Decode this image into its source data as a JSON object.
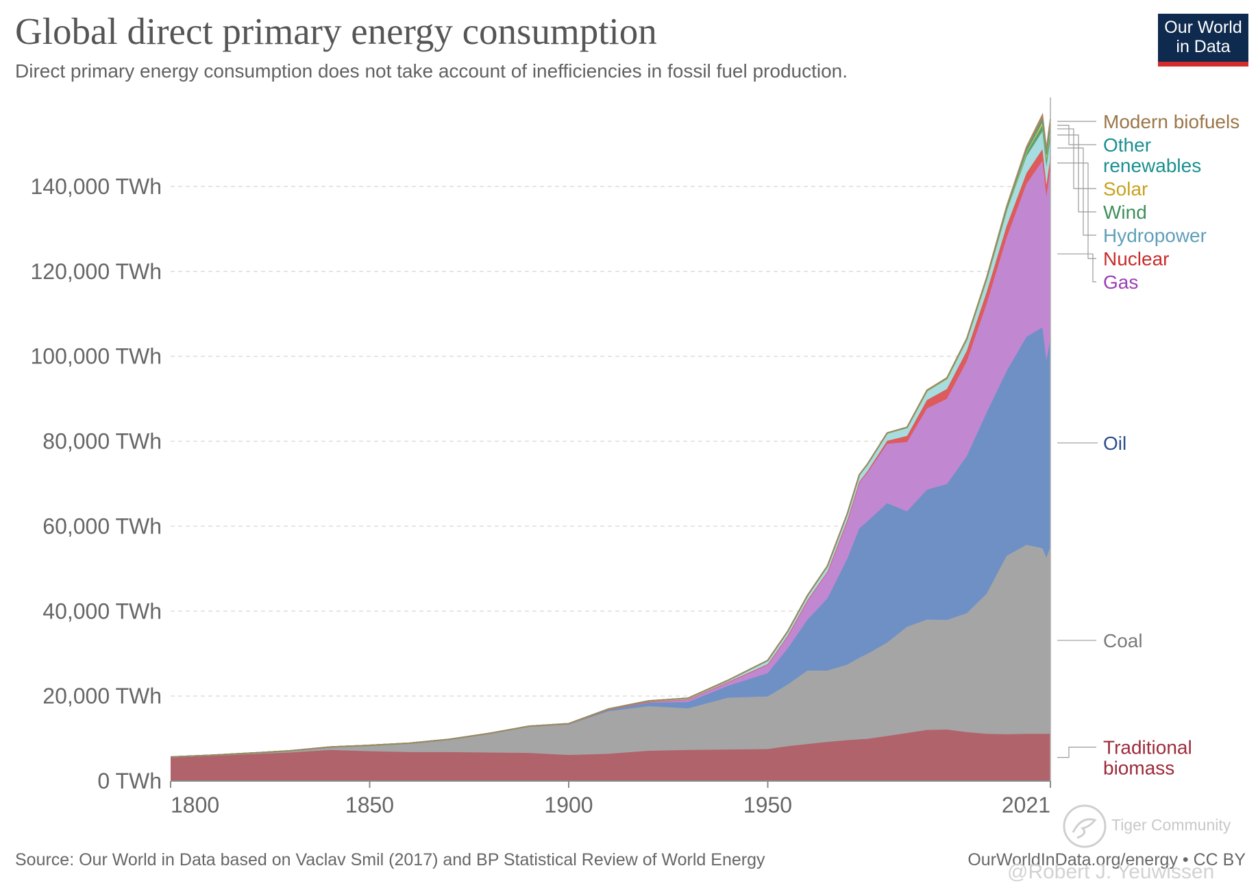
{
  "title": "Global direct primary energy consumption",
  "subtitle": "Direct primary energy consumption does not take account of inefficiencies in fossil fuel production.",
  "logo": {
    "line1": "Our World",
    "line2": "in Data",
    "bg": "#0e2a4e",
    "accent": "#d42b2b"
  },
  "source": "Source: Our World in Data based on Vaclav Smil (2017) and BP Statistical Review of World Energy",
  "credit": "OurWorldInData.org/energy • CC BY",
  "watermarks": {
    "community": "Tiger Community",
    "author": "@Robert J. Yeuwissen"
  },
  "chart_data": {
    "type": "area",
    "stacked": true,
    "x": [
      1800,
      1810,
      1820,
      1830,
      1840,
      1850,
      1860,
      1870,
      1880,
      1890,
      1900,
      1910,
      1920,
      1930,
      1940,
      1950,
      1955,
      1960,
      1965,
      1970,
      1973,
      1975,
      1980,
      1985,
      1990,
      1995,
      2000,
      2005,
      2010,
      2015,
      2019,
      2020,
      2021
    ],
    "x_ticks": [
      1800,
      1850,
      1900,
      1950,
      2021
    ],
    "y_ticks": [
      0,
      20000,
      40000,
      60000,
      80000,
      100000,
      120000,
      140000
    ],
    "y_tick_labels": [
      "0 TWh",
      "20,000 TWh",
      "40,000 TWh",
      "60,000 TWh",
      "80,000 TWh",
      "100,000 TWh",
      "120,000 TWh",
      "140,000 TWh"
    ],
    "xlim": [
      1800,
      2021
    ],
    "ylim": [
      0,
      160000
    ],
    "grid": "horizontal dashed",
    "legend_placement": "right, labels at series ends",
    "series": [
      {
        "name": "Traditional biomass",
        "label_lines": [
          "Traditional",
          "biomass"
        ],
        "color": "#b0636b",
        "label_color": "#9c2a3a",
        "values": [
          5560,
          5900,
          6300,
          6700,
          7300,
          7000,
          6800,
          6800,
          6700,
          6600,
          6110,
          6400,
          7100,
          7300,
          7400,
          7500,
          8200,
          8700,
          9200,
          9600,
          9800,
          9900,
          10600,
          11300,
          12000,
          12100,
          11500,
          11100,
          11000,
          11100,
          11100,
          11100,
          11110
        ]
      },
      {
        "name": "Coal",
        "label_lines": [
          "Coal"
        ],
        "color": "#a5a5a5",
        "label_color": "#7a7a7a",
        "values": [
          100,
          150,
          250,
          400,
          700,
          1400,
          2100,
          3000,
          4500,
          6300,
          7200,
          10000,
          10500,
          9800,
          12200,
          12400,
          14500,
          17300,
          16800,
          17800,
          19200,
          20000,
          22000,
          25000,
          26000,
          25800,
          28000,
          33000,
          42000,
          44500,
          43700,
          41500,
          44000
        ]
      },
      {
        "name": "Oil",
        "label_lines": [
          "Oil"
        ],
        "color": "#6f90c5",
        "label_color": "#2c4d8a",
        "values": [
          0,
          0,
          0,
          0,
          0,
          0,
          0,
          0,
          0,
          0,
          100,
          300,
          800,
          1500,
          2800,
          5500,
          8500,
          12000,
          17000,
          25000,
          30500,
          31200,
          32800,
          27200,
          30600,
          32000,
          37000,
          42700,
          43500,
          49000,
          52000,
          46500,
          49000
        ]
      },
      {
        "name": "Gas",
        "label_lines": [
          "Gas"
        ],
        "color": "#c287d1",
        "label_color": "#9a3fb0",
        "values": [
          0,
          0,
          0,
          0,
          0,
          0,
          0,
          0,
          0,
          0,
          50,
          150,
          250,
          600,
          900,
          2100,
          3000,
          4600,
          6300,
          9000,
          10800,
          11400,
          14000,
          16300,
          19100,
          20100,
          22300,
          25600,
          31400,
          36000,
          39200,
          38500,
          40000
        ]
      },
      {
        "name": "Nuclear",
        "label_lines": [
          "Nuclear"
        ],
        "color": "#dd5b5b",
        "label_color": "#c82c2c",
        "values": [
          0,
          0,
          0,
          0,
          0,
          0,
          0,
          0,
          0,
          0,
          0,
          0,
          0,
          0,
          0,
          0,
          0,
          0,
          30,
          80,
          200,
          380,
          700,
          1450,
          2000,
          2300,
          2500,
          2750,
          2750,
          2550,
          2780,
          2670,
          2800
        ]
      },
      {
        "name": "Hydropower",
        "label_lines": [
          "Hydropower"
        ],
        "color": "#a7dde0",
        "label_color": "#5f9fb8",
        "values": [
          0,
          0,
          0,
          0,
          0,
          0,
          0,
          0,
          0,
          0,
          50,
          100,
          200,
          300,
          400,
          900,
          1000,
          1100,
          1300,
          1500,
          1600,
          1650,
          1800,
          1950,
          2150,
          2400,
          2600,
          2900,
          3400,
          3900,
          4200,
          4300,
          4270
        ]
      },
      {
        "name": "Wind",
        "label_lines": [
          "Wind"
        ],
        "color": "#5aa171",
        "label_color": "#3e8f5c",
        "values": [
          0,
          0,
          0,
          0,
          0,
          0,
          0,
          0,
          0,
          0,
          0,
          0,
          0,
          0,
          0,
          0,
          0,
          0,
          0,
          0,
          0,
          0,
          0,
          0,
          0,
          10,
          30,
          100,
          350,
          830,
          1420,
          1590,
          1860
        ]
      },
      {
        "name": "Solar",
        "label_lines": [
          "Solar"
        ],
        "color": "#d8c23f",
        "label_color": "#c9a21f",
        "values": [
          0,
          0,
          0,
          0,
          0,
          0,
          0,
          0,
          0,
          0,
          0,
          0,
          0,
          0,
          0,
          0,
          0,
          0,
          0,
          0,
          0,
          0,
          0,
          0,
          0,
          0,
          1,
          4,
          30,
          250,
          720,
          850,
          1030
        ]
      },
      {
        "name": "Other renewables",
        "label_lines": [
          "Other",
          "renewables"
        ],
        "color": "#2ca6a0",
        "label_color": "#1b8f8f",
        "values": [
          0,
          0,
          0,
          0,
          0,
          0,
          0,
          0,
          0,
          0,
          0,
          0,
          0,
          0,
          0,
          0,
          0,
          0,
          0,
          0,
          0,
          10,
          50,
          80,
          120,
          150,
          190,
          250,
          350,
          480,
          590,
          630,
          680
        ]
      },
      {
        "name": "Modern biofuels",
        "label_lines": [
          "Modern biofuels"
        ],
        "color": "#a5855d",
        "label_color": "#9b7548",
        "values": [
          0,
          0,
          0,
          0,
          0,
          0,
          0,
          0,
          0,
          0,
          0,
          0,
          0,
          0,
          0,
          0,
          0,
          0,
          0,
          0,
          0,
          0,
          20,
          40,
          60,
          70,
          100,
          200,
          500,
          700,
          1130,
          1100,
          1140
        ]
      }
    ]
  }
}
